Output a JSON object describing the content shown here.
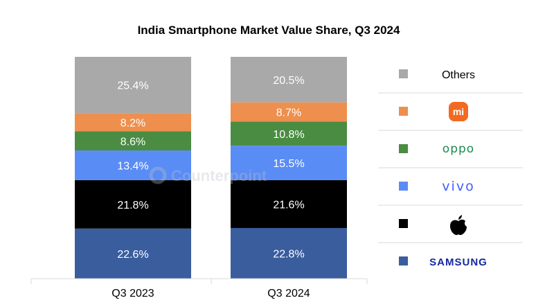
{
  "chart_data": {
    "type": "bar",
    "stacked": true,
    "title": "India Smartphone Market Value Share, Q3 2024",
    "categories": [
      "Q3 2023",
      "Q3 2024"
    ],
    "series": [
      {
        "name": "Samsung",
        "legend_kind": "samsung-logo",
        "color": "#3a5d9e",
        "values": [
          22.6,
          22.8
        ],
        "labels": [
          "22.6%",
          "22.8%"
        ]
      },
      {
        "name": "Apple",
        "legend_kind": "apple-logo",
        "color": "#000000",
        "values": [
          21.8,
          21.6
        ],
        "labels": [
          "21.8%",
          "21.6%"
        ]
      },
      {
        "name": "vivo",
        "legend_kind": "vivo-logo",
        "color": "#5a8cf5",
        "values": [
          13.4,
          15.5
        ],
        "labels": [
          "13.4%",
          "15.5%"
        ]
      },
      {
        "name": "OPPO",
        "legend_kind": "oppo-logo",
        "color": "#4a8c42",
        "values": [
          8.6,
          10.8
        ],
        "labels": [
          "8.6%",
          "10.8%"
        ]
      },
      {
        "name": "Xiaomi",
        "legend_kind": "xiaomi-logo",
        "color": "#ee8f4e",
        "values": [
          8.2,
          8.7
        ],
        "labels": [
          "8.2%",
          "8.7%"
        ]
      },
      {
        "name": "Others",
        "legend_kind": "text",
        "color": "#a9a9a9",
        "values": [
          25.4,
          20.5
        ],
        "labels": [
          "25.4%",
          "20.5%"
        ]
      }
    ],
    "ylim": [
      0,
      100
    ],
    "grid": false,
    "legend_position": "right",
    "xlabel": "",
    "ylabel": ""
  },
  "legend": {
    "others_label": "Others",
    "xiaomi_logo_text": "mi",
    "oppo_logo_text": "oppo",
    "vivo_logo_text": "vivo",
    "samsung_logo_text": "SAMSUNG"
  },
  "watermark": {
    "text": "Counterpoint"
  },
  "colors": {
    "divider": "#d9d9d9",
    "axis": "#d9d9d9",
    "oppo_brand": "#1c8a4c",
    "vivo_brand": "#415fff",
    "samsung_brand": "#1428a0",
    "xiaomi_brand": "#f26a22"
  }
}
